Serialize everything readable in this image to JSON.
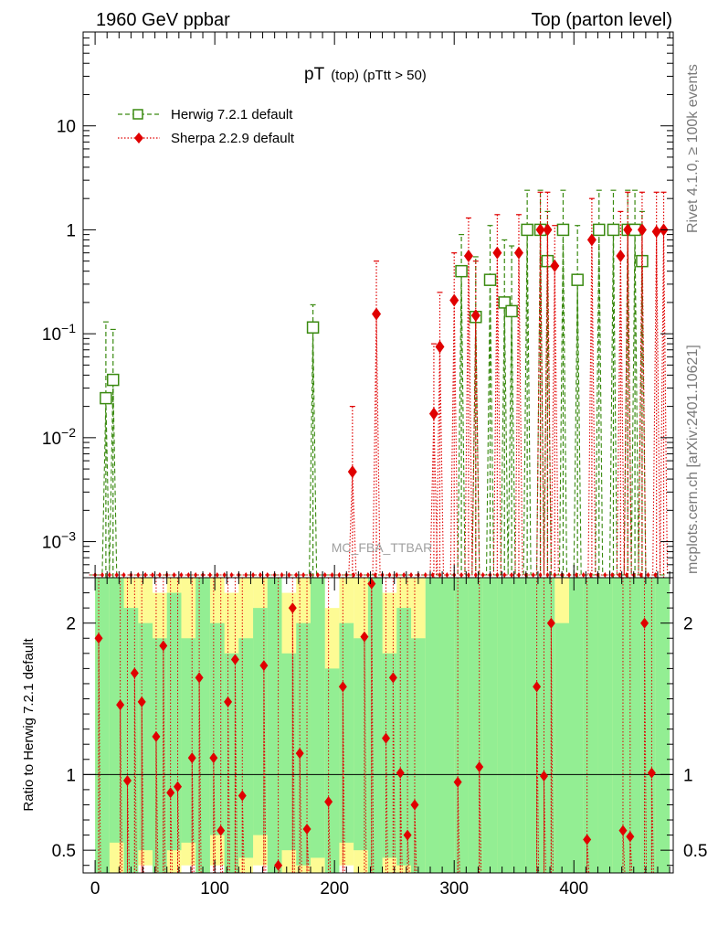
{
  "header": {
    "left": "1960 GeV ppbar",
    "right": "Top (parton level)"
  },
  "side_text": {
    "rivet": "Rivet 4.1.0, ≥ 100k events",
    "mcplots": "mcplots.cern.ch [arXiv:2401.10621]"
  },
  "watermark": "MC_FBA_TTBAR",
  "chart_data": {
    "type": "scatter",
    "title_main": "pT",
    "title_sub": "(top) (pTtt > 50)",
    "ratio_ylabel": "Ratio to Herwig 7.2.1 default",
    "main": {
      "yscale": "log",
      "ylim": [
        0.00045,
        80
      ],
      "yticks": [
        {
          "v": 10,
          "b": "10",
          "e": ""
        },
        {
          "v": 1,
          "b": "1",
          "e": ""
        },
        {
          "v": 0.1,
          "b": "10",
          "e": "−1"
        },
        {
          "v": 0.01,
          "b": "10",
          "e": "−2"
        },
        {
          "v": 0.001,
          "b": "10",
          "e": "−3"
        }
      ]
    },
    "xlim": [
      -10,
      483
    ],
    "xticks": [
      0,
      100,
      200,
      300,
      400
    ],
    "ratio": {
      "ylim": [
        0.35,
        2.3
      ],
      "yticks": [
        0.5,
        1,
        2
      ]
    },
    "series": [
      {
        "name": "Herwig 7.2.1 default",
        "color": "#3a8a10",
        "marker": "open-square",
        "points": [
          {
            "x": 9,
            "y": 0.024,
            "eu": 0.13
          },
          {
            "x": 15,
            "y": 0.036,
            "eu": 0.11
          },
          {
            "x": 182,
            "y": 0.115,
            "eu": 0.19
          },
          {
            "x": 306,
            "y": 0.4,
            "eu": 0.9
          },
          {
            "x": 318,
            "y": 0.145,
            "eu": 0.55
          },
          {
            "x": 330,
            "y": 0.33,
            "eu": 1.1
          },
          {
            "x": 342,
            "y": 0.2,
            "eu": 0.8
          },
          {
            "x": 348,
            "y": 0.165,
            "eu": 0.7
          },
          {
            "x": 361,
            "y": 1.0,
            "eu": 2.4
          },
          {
            "x": 372,
            "y": 1.0,
            "eu": 2.4
          },
          {
            "x": 378,
            "y": 0.5,
            "eu": 1.5
          },
          {
            "x": 391,
            "y": 1.0,
            "eu": 2.4
          },
          {
            "x": 403,
            "y": 0.33,
            "eu": 1.1
          },
          {
            "x": 421,
            "y": 1.0,
            "eu": 2.4
          },
          {
            "x": 433,
            "y": 1.0,
            "eu": 2.4
          },
          {
            "x": 445,
            "y": 1.0,
            "eu": 2.4
          },
          {
            "x": 451,
            "y": 1.0,
            "eu": 2.4
          },
          {
            "x": 457,
            "y": 0.5,
            "eu": 1.5
          }
        ]
      },
      {
        "name": "Sherpa 2.2.9 default",
        "color": "#e00000",
        "marker": "diamond",
        "points": [
          {
            "x": 215,
            "y": 0.0047,
            "eu": 0.02
          },
          {
            "x": 235,
            "y": 0.155,
            "eu": 0.5
          },
          {
            "x": 283,
            "y": 0.017,
            "eu": 0.08
          },
          {
            "x": 288,
            "y": 0.075,
            "eu": 0.25
          },
          {
            "x": 300,
            "y": 0.21,
            "eu": 0.6
          },
          {
            "x": 312,
            "y": 0.56,
            "eu": 1.3
          },
          {
            "x": 318,
            "y": 0.15,
            "eu": 0.5
          },
          {
            "x": 336,
            "y": 0.6,
            "eu": 1.4
          },
          {
            "x": 354,
            "y": 0.6,
            "eu": 1.4
          },
          {
            "x": 372,
            "y": 1.0,
            "eu": 2.3
          },
          {
            "x": 378,
            "y": 1.0,
            "eu": 2.3
          },
          {
            "x": 384,
            "y": 0.45,
            "eu": 1.1
          },
          {
            "x": 415,
            "y": 0.8,
            "eu": 2.0
          },
          {
            "x": 439,
            "y": 0.56,
            "eu": 1.5
          },
          {
            "x": 445,
            "y": 1.0,
            "eu": 2.3
          },
          {
            "x": 457,
            "y": 1.0,
            "eu": 2.3
          },
          {
            "x": 469,
            "y": 0.96,
            "eu": 2.3
          },
          {
            "x": 475,
            "y": 1.0,
            "eu": 2.3
          }
        ]
      }
    ],
    "ratio_points": [
      {
        "x": 3,
        "r": 1.9
      },
      {
        "x": 21,
        "r": 1.46
      },
      {
        "x": 27,
        "r": 0.96
      },
      {
        "x": 33,
        "r": 1.67
      },
      {
        "x": 39,
        "r": 1.48
      },
      {
        "x": 51,
        "r": 1.25
      },
      {
        "x": 57,
        "r": 1.85
      },
      {
        "x": 63,
        "r": 0.88
      },
      {
        "x": 69,
        "r": 0.92
      },
      {
        "x": 81,
        "r": 1.11
      },
      {
        "x": 87,
        "r": 1.64
      },
      {
        "x": 99,
        "r": 1.11
      },
      {
        "x": 105,
        "r": 0.63
      },
      {
        "x": 111,
        "r": 1.48
      },
      {
        "x": 117,
        "r": 1.76
      },
      {
        "x": 123,
        "r": 0.86
      },
      {
        "x": 141,
        "r": 1.72
      },
      {
        "x": 153,
        "r": 0.4
      },
      {
        "x": 165,
        "r": 2.1
      },
      {
        "x": 171,
        "r": 1.14
      },
      {
        "x": 177,
        "r": 0.64
      },
      {
        "x": 195,
        "r": 0.82
      },
      {
        "x": 207,
        "r": 1.58
      },
      {
        "x": 225,
        "r": 1.91
      },
      {
        "x": 231,
        "r": 2.26
      },
      {
        "x": 243,
        "r": 1.24
      },
      {
        "x": 249,
        "r": 1.64
      },
      {
        "x": 255,
        "r": 1.01
      },
      {
        "x": 261,
        "r": 0.6
      },
      {
        "x": 267,
        "r": 0.8
      },
      {
        "x": 303,
        "r": 0.95
      },
      {
        "x": 321,
        "r": 1.05
      },
      {
        "x": 369,
        "r": 1.58
      },
      {
        "x": 375,
        "r": 0.99
      },
      {
        "x": 381,
        "r": 2.0
      },
      {
        "x": 411,
        "r": 0.57
      },
      {
        "x": 441,
        "r": 0.63
      },
      {
        "x": 447,
        "r": 0.59
      },
      {
        "x": 459,
        "r": 2.0
      },
      {
        "x": 465,
        "r": 1.01
      }
    ],
    "bands": [
      {
        "x": 0,
        "g": [
          0.35,
          2.3
        ],
        "y": [
          0.35,
          2.3
        ]
      },
      {
        "x": 12,
        "g": [
          0.55,
          2.3
        ],
        "y": [
          0.35,
          2.3
        ]
      },
      {
        "x": 24,
        "g": [
          0.35,
          2.1
        ],
        "y": [
          0.35,
          2.3
        ]
      },
      {
        "x": 36,
        "g": [
          0.5,
          2.0
        ],
        "y": [
          0.4,
          2.3
        ]
      },
      {
        "x": 48,
        "g": [
          0.35,
          1.9
        ],
        "y": [
          0.35,
          2.2
        ]
      },
      {
        "x": 60,
        "g": [
          0.5,
          2.2
        ],
        "y": [
          0.35,
          2.3
        ]
      },
      {
        "x": 72,
        "g": [
          0.55,
          1.9
        ],
        "y": [
          0.4,
          2.3
        ]
      },
      {
        "x": 84,
        "g": [
          0.35,
          2.3
        ],
        "y": [
          0.35,
          2.3
        ]
      },
      {
        "x": 96,
        "g": [
          0.6,
          2.0
        ],
        "y": [
          0.4,
          2.3
        ]
      },
      {
        "x": 108,
        "g": [
          0.35,
          1.8
        ],
        "y": [
          0.35,
          2.2
        ]
      },
      {
        "x": 120,
        "g": [
          0.45,
          1.9
        ],
        "y": [
          0.35,
          2.3
        ]
      },
      {
        "x": 132,
        "g": [
          0.6,
          2.1
        ],
        "y": [
          0.4,
          2.3
        ]
      },
      {
        "x": 144,
        "g": [
          0.35,
          2.3
        ],
        "y": [
          0.35,
          2.3
        ]
      },
      {
        "x": 156,
        "g": [
          0.5,
          1.8
        ],
        "y": [
          0.35,
          2.2
        ]
      },
      {
        "x": 168,
        "g": [
          0.4,
          2.0
        ],
        "y": [
          0.35,
          2.3
        ]
      },
      {
        "x": 180,
        "g": [
          0.45,
          2.3
        ],
        "y": [
          0.35,
          2.3
        ]
      },
      {
        "x": 192,
        "g": [
          0.35,
          1.7
        ],
        "y": [
          0.35,
          2.1
        ]
      },
      {
        "x": 204,
        "g": [
          0.55,
          2.0
        ],
        "y": [
          0.4,
          2.3
        ]
      },
      {
        "x": 216,
        "g": [
          0.5,
          1.9
        ],
        "y": [
          0.35,
          2.3
        ]
      },
      {
        "x": 228,
        "g": [
          0.35,
          2.3
        ],
        "y": [
          0.35,
          2.3
        ]
      },
      {
        "x": 240,
        "g": [
          0.45,
          1.8
        ],
        "y": [
          0.35,
          2.2
        ]
      },
      {
        "x": 252,
        "g": [
          0.4,
          2.1
        ],
        "y": [
          0.35,
          2.3
        ]
      },
      {
        "x": 264,
        "g": [
          0.35,
          1.9
        ],
        "y": [
          0.35,
          2.3
        ]
      },
      {
        "x": 276,
        "g": [
          0.35,
          2.3
        ],
        "y": [
          0.35,
          2.3
        ]
      },
      {
        "x": 288,
        "g": [
          0.35,
          2.3
        ],
        "y": [
          0.35,
          2.3
        ]
      },
      {
        "x": 300,
        "g": [
          0.35,
          2.3
        ],
        "y": [
          0.35,
          2.3
        ]
      },
      {
        "x": 312,
        "g": [
          0.35,
          2.3
        ],
        "y": [
          0.35,
          2.3
        ]
      },
      {
        "x": 324,
        "g": [
          0.35,
          2.3
        ],
        "y": [
          0.35,
          2.3
        ]
      },
      {
        "x": 336,
        "g": [
          0.35,
          2.3
        ],
        "y": [
          0.35,
          2.3
        ]
      },
      {
        "x": 348,
        "g": [
          0.35,
          2.3
        ],
        "y": [
          0.35,
          2.3
        ]
      },
      {
        "x": 360,
        "g": [
          0.35,
          2.3
        ],
        "y": [
          0.35,
          2.3
        ]
      },
      {
        "x": 372,
        "g": [
          0.35,
          2.3
        ],
        "y": [
          0.35,
          2.3
        ]
      },
      {
        "x": 384,
        "g": [
          0.35,
          2.0
        ],
        "y": [
          0.35,
          2.3
        ]
      },
      {
        "x": 396,
        "g": [
          0.35,
          2.3
        ],
        "y": [
          0.35,
          2.3
        ]
      },
      {
        "x": 408,
        "g": [
          0.35,
          2.3
        ],
        "y": [
          0.35,
          2.3
        ]
      },
      {
        "x": 420,
        "g": [
          0.35,
          2.3
        ],
        "y": [
          0.35,
          2.3
        ]
      },
      {
        "x": 432,
        "g": [
          0.35,
          2.3
        ],
        "y": [
          0.35,
          2.3
        ]
      },
      {
        "x": 444,
        "g": [
          0.35,
          2.3
        ],
        "y": [
          0.35,
          2.3
        ]
      },
      {
        "x": 456,
        "g": [
          0.35,
          2.3
        ],
        "y": [
          0.35,
          2.3
        ]
      },
      {
        "x": 468,
        "g": [
          0.35,
          2.3
        ],
        "y": [
          0.35,
          2.3
        ]
      }
    ]
  }
}
